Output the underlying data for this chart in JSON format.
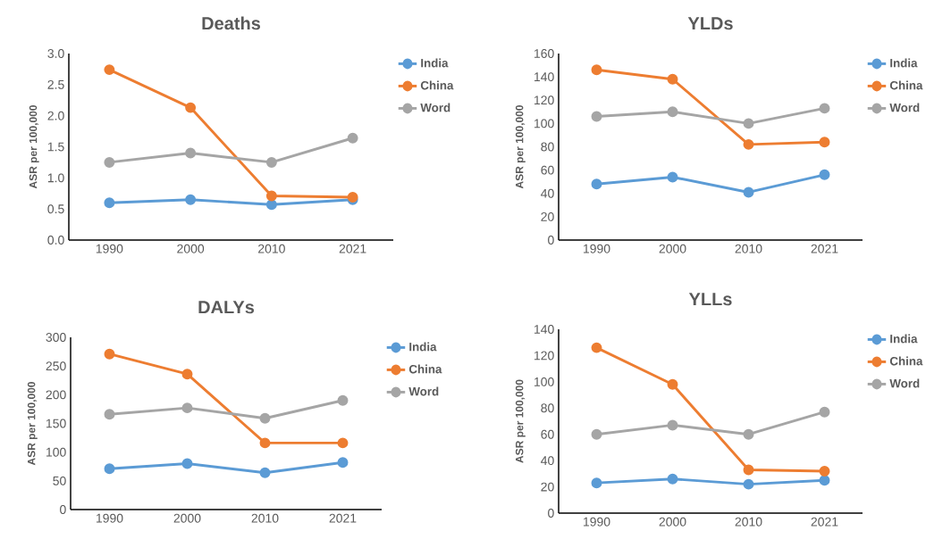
{
  "chart_data": [
    {
      "type": "line",
      "title": "Deaths",
      "ylabel": "ASR per 100,000",
      "categories": [
        "1990",
        "2000",
        "2010",
        "2021"
      ],
      "series": [
        {
          "name": "India",
          "color": "#5b9bd5",
          "values": [
            0.6,
            0.65,
            0.57,
            0.65
          ]
        },
        {
          "name": "China",
          "color": "#ed7d31",
          "values": [
            2.74,
            2.13,
            0.71,
            0.69
          ]
        },
        {
          "name": "Word",
          "color": "#a5a5a5",
          "values": [
            1.25,
            1.4,
            1.25,
            1.64
          ]
        }
      ],
      "ylim": [
        0,
        3
      ],
      "yticks": [
        {
          "value": 0,
          "label": "0.0"
        },
        {
          "value": 0.5,
          "label": "0.5"
        },
        {
          "value": 1,
          "label": "1.0"
        },
        {
          "value": 1.5,
          "label": "1.5"
        },
        {
          "value": 2,
          "label": "2.0"
        },
        {
          "value": 2.5,
          "label": "2.5"
        },
        {
          "value": 3,
          "label": "3.0"
        }
      ],
      "legend": "right",
      "marker": "circle",
      "line_style": "solid"
    },
    {
      "type": "line",
      "title": "YLDs",
      "ylabel": "ASR per 100,000",
      "categories": [
        "1990",
        "2000",
        "2010",
        "2021"
      ],
      "series": [
        {
          "name": "India",
          "color": "#5b9bd5",
          "values": [
            48,
            54,
            41,
            56
          ]
        },
        {
          "name": "China",
          "color": "#ed7d31",
          "values": [
            146,
            138,
            82,
            84
          ]
        },
        {
          "name": "Word",
          "color": "#a5a5a5",
          "values": [
            106,
            110,
            100,
            113
          ]
        }
      ],
      "ylim": [
        0,
        160
      ],
      "yticks": [
        0,
        20,
        40,
        60,
        80,
        100,
        120,
        140,
        160
      ],
      "legend": "right",
      "marker": "circle",
      "line_style": "solid"
    },
    {
      "type": "line",
      "title": "DALYs",
      "ylabel": "ASR per 100,000",
      "categories": [
        "1990",
        "2000",
        "2010",
        "2021"
      ],
      "series": [
        {
          "name": "India",
          "color": "#5b9bd5",
          "values": [
            71,
            80,
            64,
            82
          ]
        },
        {
          "name": "China",
          "color": "#ed7d31",
          "values": [
            271,
            236,
            116,
            116
          ]
        },
        {
          "name": "Word",
          "color": "#a5a5a5",
          "values": [
            166,
            177,
            159,
            190
          ]
        }
      ],
      "ylim": [
        0,
        300
      ],
      "yticks": [
        0,
        50,
        100,
        150,
        200,
        250,
        300
      ],
      "legend": "right",
      "marker": "circle",
      "line_style": "solid"
    },
    {
      "type": "line",
      "title": "YLLs",
      "ylabel": "ASR per 100,000",
      "categories": [
        "1990",
        "2000",
        "2010",
        "2021"
      ],
      "series": [
        {
          "name": "India",
          "color": "#5b9bd5",
          "values": [
            23,
            26,
            22,
            25
          ]
        },
        {
          "name": "China",
          "color": "#ed7d31",
          "values": [
            126,
            98,
            33,
            32
          ]
        },
        {
          "name": "Word",
          "color": "#a5a5a5",
          "values": [
            60,
            67,
            60,
            77
          ]
        }
      ],
      "ylim": [
        0,
        140
      ],
      "yticks": [
        0,
        20,
        40,
        60,
        80,
        100,
        120,
        140
      ],
      "legend": "right",
      "marker": "circle",
      "line_style": "solid"
    }
  ]
}
